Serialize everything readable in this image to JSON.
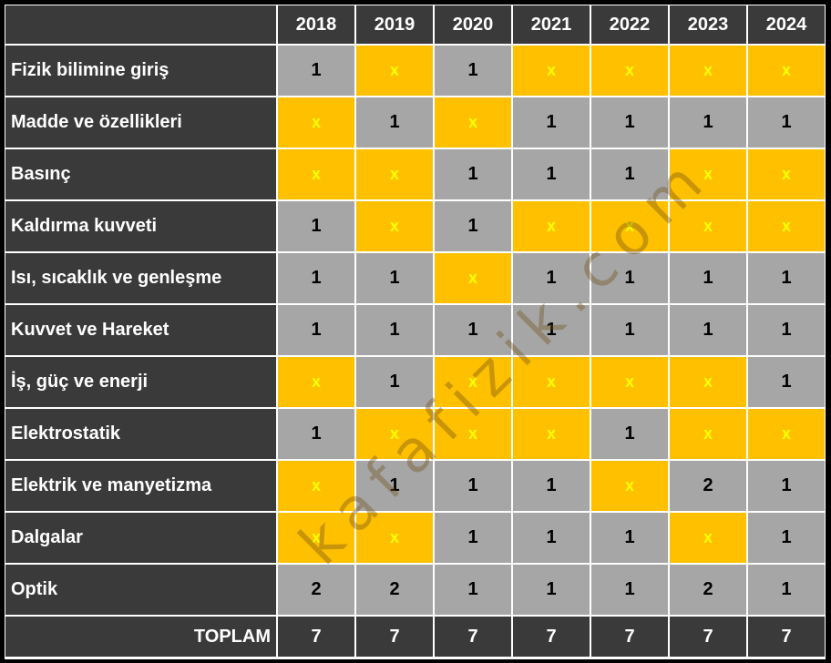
{
  "chart_data": {
    "type": "table",
    "columns": [
      "2018",
      "2019",
      "2020",
      "2021",
      "2022",
      "2023",
      "2024"
    ],
    "rows": [
      {
        "label": "Fizik bilimine giriş",
        "values": [
          "1",
          "x",
          "1",
          "x",
          "x",
          "x",
          "x"
        ]
      },
      {
        "label": "Madde ve özellikleri",
        "values": [
          "x",
          "1",
          "x",
          "1",
          "1",
          "1",
          "1"
        ]
      },
      {
        "label": "Basınç",
        "values": [
          "x",
          "x",
          "1",
          "1",
          "1",
          "x",
          "x"
        ]
      },
      {
        "label": "Kaldırma kuvveti",
        "values": [
          "1",
          "x",
          "1",
          "x",
          "x",
          "x",
          "x"
        ]
      },
      {
        "label": "Isı, sıcaklık ve genleşme",
        "values": [
          "1",
          "1",
          "x",
          "1",
          "1",
          "1",
          "1"
        ]
      },
      {
        "label": "Kuvvet ve Hareket",
        "values": [
          "1",
          "1",
          "1",
          "1",
          "1",
          "1",
          "1"
        ]
      },
      {
        "label": "İş, güç ve enerji",
        "values": [
          "x",
          "1",
          "x",
          "x",
          "x",
          "x",
          "1"
        ]
      },
      {
        "label": "Elektrostatik",
        "values": [
          "1",
          "x",
          "x",
          "x",
          "1",
          "x",
          "x"
        ]
      },
      {
        "label": "Elektrik ve manyetizma",
        "values": [
          "x",
          "1",
          "1",
          "1",
          "x",
          "2",
          "1"
        ]
      },
      {
        "label": "Dalgalar",
        "values": [
          "x",
          "x",
          "1",
          "1",
          "1",
          "x",
          "1"
        ]
      },
      {
        "label": "Optik",
        "values": [
          "2",
          "2",
          "1",
          "1",
          "1",
          "2",
          "1"
        ]
      }
    ],
    "total": {
      "label": "TOPLAM",
      "values": [
        "7",
        "7",
        "7",
        "7",
        "7",
        "7",
        "7"
      ]
    }
  },
  "colors": {
    "header_bg": "#3a3a3a",
    "filled_cell": "#a6a6a6",
    "empty_cell": "#ffc000",
    "empty_mark": "#ffff00"
  },
  "watermark": "kafafizik.com"
}
